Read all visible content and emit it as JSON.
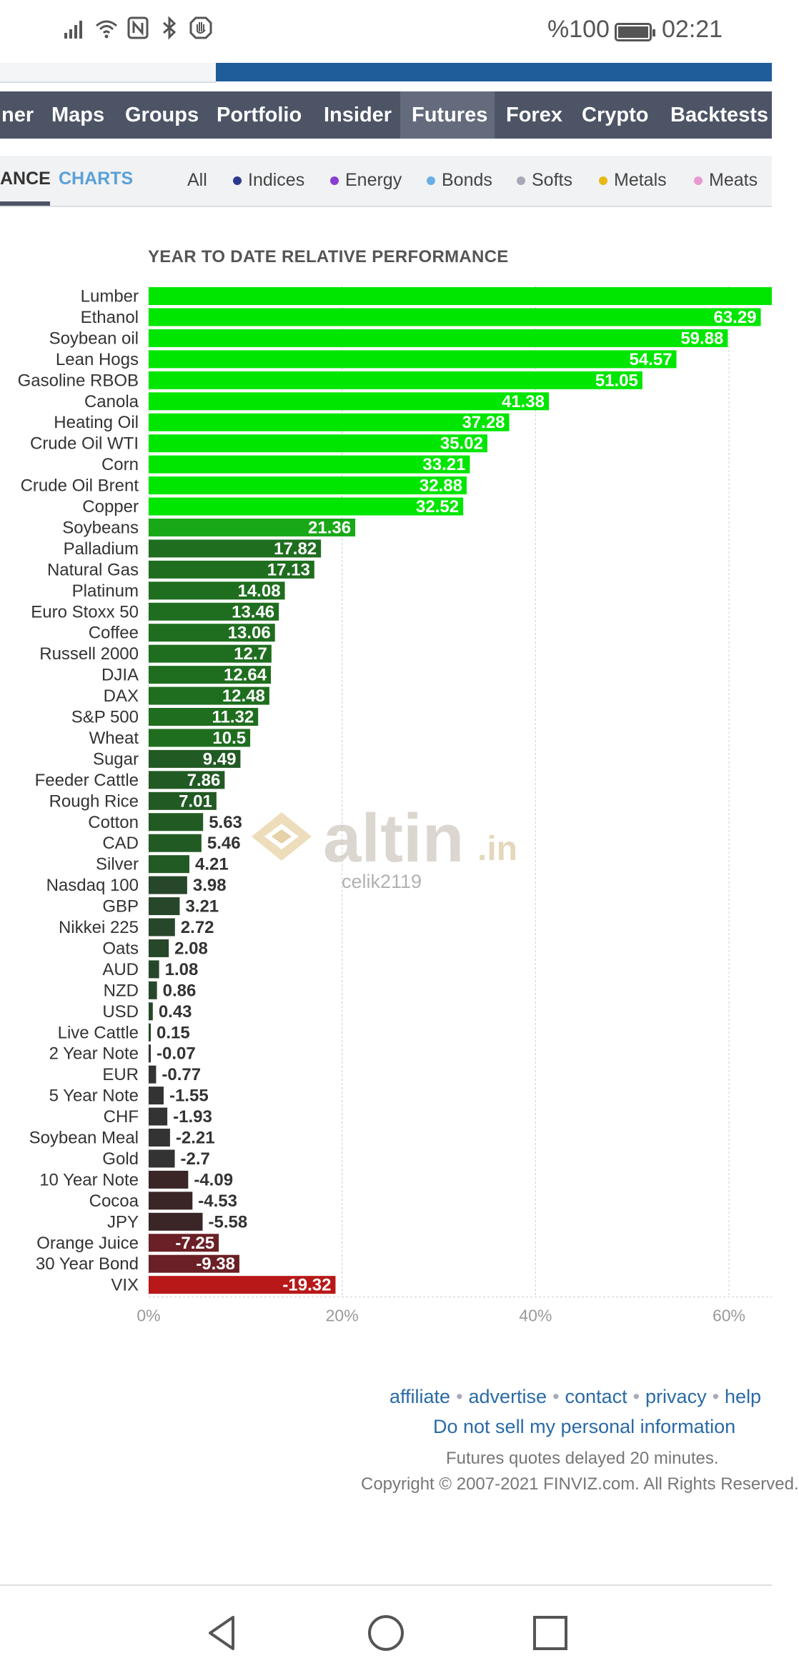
{
  "status_bar": {
    "icons": [
      "signal-icon",
      "wifi-icon",
      "nfc-icon",
      "bluetooth-icon",
      "hand-icon"
    ],
    "battery": "%100",
    "time": "02:21"
  },
  "nav": {
    "items": [
      {
        "label": "ner",
        "active": false
      },
      {
        "label": "Maps",
        "active": false
      },
      {
        "label": "Groups",
        "active": false
      },
      {
        "label": "Portfolio",
        "active": false
      },
      {
        "label": "Insider",
        "active": false
      },
      {
        "label": "Futures",
        "active": true
      },
      {
        "label": "Forex",
        "active": false
      },
      {
        "label": "Crypto",
        "active": false
      },
      {
        "label": "Backtests",
        "active": false
      }
    ]
  },
  "tabs": {
    "performance": "ANCE",
    "charts": "CHARTS",
    "filters": [
      {
        "label": "All",
        "color": ""
      },
      {
        "label": "Indices",
        "color": "#2b3a8f"
      },
      {
        "label": "Energy",
        "color": "#8a3fd1"
      },
      {
        "label": "Bonds",
        "color": "#6aaee8"
      },
      {
        "label": "Softs",
        "color": "#a8a8b8"
      },
      {
        "label": "Metals",
        "color": "#e8b818"
      },
      {
        "label": "Meats",
        "color": "#e89ad0"
      }
    ]
  },
  "chart_data": {
    "type": "bar",
    "orientation": "horizontal",
    "title": "YEAR TO DATE RELATIVE PERFORMANCE",
    "categories": [
      "Lumber",
      "Ethanol",
      "Soybean oil",
      "Lean Hogs",
      "Gasoline RBOB",
      "Canola",
      "Heating Oil",
      "Crude Oil WTI",
      "Corn",
      "Crude Oil Brent",
      "Copper",
      "Soybeans",
      "Palladium",
      "Natural Gas",
      "Platinum",
      "Euro Stoxx 50",
      "Coffee",
      "Russell 2000",
      "DJIA",
      "DAX",
      "S&P 500",
      "Wheat",
      "Sugar",
      "Feeder Cattle",
      "Rough Rice",
      "Cotton",
      "CAD",
      "Silver",
      "Nasdaq 100",
      "GBP",
      "Nikkei 225",
      "Oats",
      "AUD",
      "NZD",
      "USD",
      "Live Cattle",
      "2 Year Note",
      "EUR",
      "5 Year Note",
      "CHF",
      "Soybean Meal",
      "Gold",
      "10 Year Note",
      "Cocoa",
      "JPY",
      "Orange Juice",
      "30 Year Bond",
      "VIX"
    ],
    "values": [
      65,
      63.29,
      59.88,
      54.57,
      51.05,
      41.38,
      37.28,
      35.02,
      33.21,
      32.88,
      32.52,
      21.36,
      17.82,
      17.13,
      14.08,
      13.46,
      13.06,
      12.7,
      12.64,
      12.48,
      11.32,
      10.5,
      9.49,
      7.86,
      7.01,
      5.63,
      5.46,
      4.21,
      3.98,
      3.21,
      2.72,
      2.08,
      1.08,
      0.86,
      0.43,
      0.15,
      -0.07,
      -0.77,
      -1.55,
      -1.93,
      -2.21,
      -2.7,
      -4.09,
      -4.53,
      -5.58,
      -7.25,
      -9.38,
      -19.32
    ],
    "value_labels": [
      "",
      "63.29",
      "59.88",
      "54.57",
      "51.05",
      "41.38",
      "37.28",
      "35.02",
      "33.21",
      "32.88",
      "32.52",
      "21.36",
      "17.82",
      "17.13",
      "14.08",
      "13.46",
      "13.06",
      "12.7",
      "12.64",
      "12.48",
      "11.32",
      "10.5",
      "9.49",
      "7.86",
      "7.01",
      "5.63",
      "5.46",
      "4.21",
      "3.98",
      "3.21",
      "2.72",
      "2.08",
      "1.08",
      "0.86",
      "0.43",
      "0.15",
      "-0.07",
      "-0.77",
      "-1.55",
      "-1.93",
      "-2.21",
      "-2.7",
      "-4.09",
      "-4.53",
      "-5.58",
      "-7.25",
      "-9.38",
      "-19.32"
    ],
    "x_ticks": [
      "0%",
      "20%",
      "40%",
      "60%"
    ],
    "x_tick_values": [
      0,
      20,
      40,
      60
    ],
    "xlim": [
      0,
      64.6
    ],
    "grid": true,
    "colors": {
      "positive_bright": "#00e600",
      "positive_mid": "#18a818",
      "positive_dark": "#1f6e1f",
      "positive_darkest": "#27472a",
      "neutral": "#333333",
      "negative_dark": "#3a2527",
      "negative_mid": "#6a2026",
      "negative_bright": "#b81818",
      "grid": "#cccccc",
      "tick_label": "#999999"
    }
  },
  "watermark": {
    "brand": "altin",
    "suffix": ".in",
    "user": "celik2119"
  },
  "footer": {
    "links": [
      "affiliate",
      "advertise",
      "contact",
      "privacy",
      "help"
    ],
    "dnsmpi": "Do not sell my personal information",
    "delay": "Futures quotes delayed 20 minutes.",
    "copyright": "Copyright © 2007-2021 FINVIZ.com. All Rights Reserved."
  },
  "android_nav": [
    "back-icon",
    "home-icon",
    "recents-icon"
  ]
}
